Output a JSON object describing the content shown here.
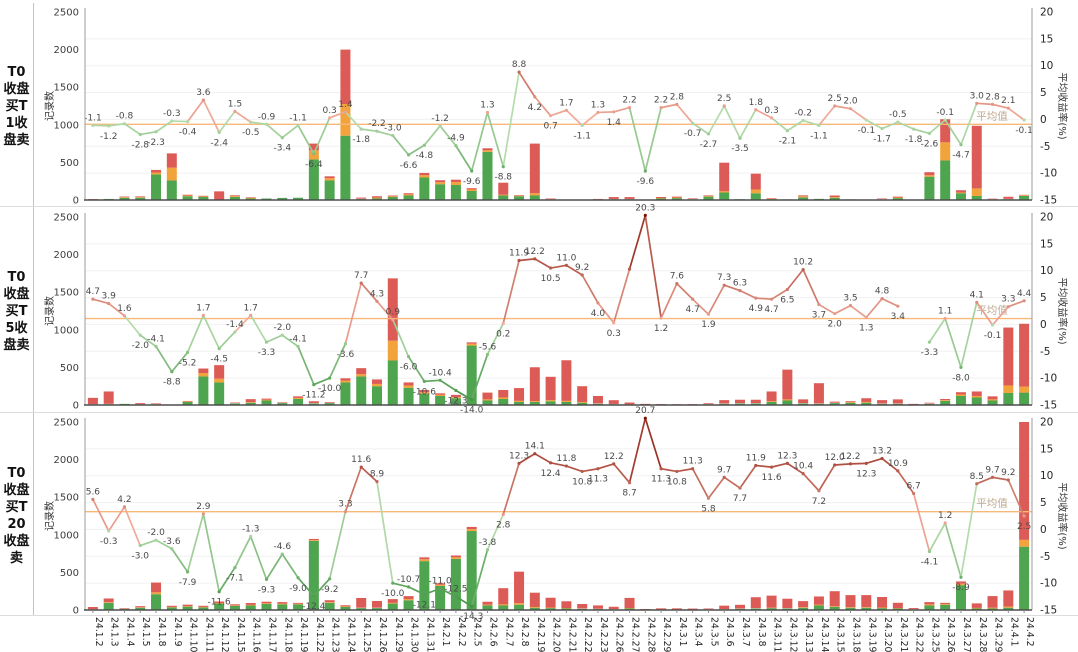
{
  "axes": {
    "left_title": "记录数",
    "right_title": "平均收益率(%)",
    "left_ticks": [
      "0",
      "500",
      "1000",
      "1500",
      "2000",
      "2500"
    ],
    "right_ticks": [
      "-15",
      "-10",
      "-5",
      "0",
      "5",
      "10",
      "15",
      "20"
    ],
    "avg_line_label": "平均值"
  },
  "colors": {
    "bar_green": "#4fa44f",
    "bar_orange": "#f2a33c",
    "bar_red": "#dd5b56",
    "avg_line": "#f7b878",
    "grid": "#f0f0f0",
    "point_label": "#4a4a4a",
    "axis_text": "#333333",
    "avg_text": "#bfa88e",
    "line_neg_weak": "#b5dcab",
    "line_neg_strong": "#3c8f3f",
    "line_pos_weak": "#f4ad9b",
    "line_pos_strong": "#841408"
  },
  "chart_data": {
    "type": "bar+line",
    "panel_count": 3,
    "ylim_left": [
      0,
      2500
    ],
    "ylim_right": [
      -15,
      20
    ],
    "grid": "faint horizontal",
    "legend_position": "none",
    "categories": [
      "24.1.2",
      "24.1.3",
      "24.1.4",
      "24.1.5",
      "24.1.8",
      "24.1.9",
      "24.1.10",
      "24.1.11",
      "24.1.12",
      "24.1.15",
      "24.1.16",
      "24.1.17",
      "24.1.18",
      "24.1.19",
      "24.1.22",
      "24.1.23",
      "24.1.24",
      "24.1.25",
      "24.1.26",
      "24.1.29",
      "24.1.30",
      "24.1.31",
      "24.2.1",
      "24.2.2",
      "24.2.5",
      "24.2.6",
      "24.2.7",
      "24.2.8",
      "24.2.19",
      "24.2.20",
      "24.2.21",
      "24.2.22",
      "24.2.23",
      "24.2.26",
      "24.2.27",
      "24.2.28",
      "24.2.29",
      "24.3.1",
      "24.3.4",
      "24.3.5",
      "24.3.6",
      "24.3.7",
      "24.3.8",
      "24.3.11",
      "24.3.12",
      "24.3.13",
      "24.3.14",
      "24.3.15",
      "24.3.18",
      "24.3.19",
      "24.3.20",
      "24.3.21",
      "24.3.22",
      "24.3.25",
      "24.3.26",
      "24.3.27",
      "24.3.28",
      "24.3.29",
      "24.4.1",
      "24.4.2"
    ],
    "panels": [
      {
        "row_label": "T0收盘买T1收盘卖",
        "avg": -0.9,
        "line": [
          -1.1,
          -1.2,
          -0.8,
          -2.8,
          -2.3,
          -0.3,
          -0.4,
          3.6,
          -2.4,
          1.5,
          -0.5,
          -0.9,
          -3.4,
          -1.1,
          -6.4,
          0.3,
          1.4,
          -1.8,
          -2.2,
          -3.0,
          -6.6,
          -4.8,
          -1.2,
          -4.9,
          -9.6,
          1.3,
          -8.8,
          8.8,
          4.2,
          0.7,
          1.7,
          -1.1,
          1.3,
          1.4,
          2.2,
          -9.6,
          2.2,
          2.8,
          -0.7,
          -2.7,
          2.5,
          -3.5,
          1.8,
          0.3,
          -2.1,
          -0.2,
          -1.1,
          2.5,
          2.0,
          -0.1,
          -1.7,
          -0.5,
          -1.8,
          -2.6,
          -0.1,
          -4.7,
          3.0,
          2.8,
          2.1,
          -0.1
        ],
        "hidden_line_labels": [],
        "bars": {
          "green": [
            4,
            14,
            30,
            30,
            340,
            260,
            50,
            40,
            5,
            40,
            20,
            20,
            28,
            30,
            540,
            260,
            855,
            12,
            20,
            40,
            60,
            300,
            210,
            200,
            120,
            640,
            60,
            50,
            60,
            8,
            5,
            4,
            6,
            10,
            10,
            3,
            20,
            25,
            10,
            45,
            100,
            10,
            90,
            12,
            8,
            35,
            15,
            30,
            8,
            6,
            8,
            25,
            6,
            310,
            526,
            90,
            53,
            8,
            10,
            55
          ],
          "orange": [
            0,
            2,
            8,
            8,
            25,
            170,
            10,
            8,
            0,
            12,
            8,
            4,
            4,
            5,
            120,
            30,
            420,
            5,
            10,
            10,
            15,
            30,
            26,
            40,
            20,
            20,
            10,
            8,
            30,
            2,
            2,
            2,
            2,
            4,
            4,
            1,
            6,
            8,
            4,
            8,
            16,
            2,
            50,
            6,
            3,
            15,
            5,
            10,
            3,
            2,
            4,
            8,
            2,
            20,
            241,
            10,
            101,
            2,
            5,
            8
          ],
          "red": [
            8,
            2,
            8,
            10,
            35,
            190,
            10,
            8,
            110,
            10,
            8,
            4,
            4,
            5,
            90,
            25,
            725,
            15,
            20,
            10,
            15,
            30,
            27,
            30,
            17,
            28,
            160,
            7,
            660,
            10,
            5,
            4,
            6,
            25,
            25,
            3,
            14,
            12,
            8,
            8,
            380,
            3,
            210,
            7,
            5,
            12,
            5,
            20,
            5,
            4,
            8,
            12,
            4,
            40,
            307,
            30,
            833,
            8,
            28,
            6
          ]
        }
      },
      {
        "row_label": "T0收盘买T5收盘卖",
        "avg": 1.1,
        "line": [
          4.7,
          3.9,
          1.6,
          -2.0,
          -4.1,
          -8.8,
          -5.2,
          1.7,
          -4.5,
          -1.4,
          1.7,
          -3.3,
          -2.0,
          -4.1,
          -11.2,
          -10.0,
          -3.6,
          7.7,
          4.3,
          0.9,
          -6.0,
          -10.6,
          -10.4,
          -12.3,
          -14.0,
          -5.6,
          0.2,
          11.9,
          12.2,
          10.5,
          11.0,
          9.2,
          4.0,
          0.3,
          10.3,
          20.3,
          1.2,
          7.6,
          4.7,
          1.9,
          7.3,
          6.3,
          4.9,
          4.7,
          6.5,
          10.2,
          3.7,
          2.0,
          3.5,
          1.3,
          4.8,
          3.4,
          null,
          -3.3,
          1.1,
          -8.0,
          4.1,
          -0.1,
          3.3,
          4.4
        ],
        "hidden_line_labels": [
          34
        ],
        "bars": {
          "green": [
            8,
            10,
            15,
            8,
            10,
            6,
            40,
            380,
            300,
            20,
            30,
            60,
            25,
            80,
            20,
            25,
            300,
            380,
            250,
            592,
            230,
            150,
            120,
            90,
            790,
            60,
            80,
            40,
            40,
            50,
            40,
            30,
            15,
            10,
            6,
            4,
            3,
            3,
            4,
            10,
            15,
            20,
            20,
            40,
            60,
            20,
            15,
            25,
            30,
            30,
            15,
            15,
            5,
            15,
            55,
            120,
            100,
            60,
            160,
            165
          ],
          "orange": [
            2,
            5,
            3,
            2,
            3,
            2,
            8,
            45,
            50,
            5,
            8,
            10,
            5,
            15,
            5,
            5,
            25,
            30,
            30,
            263,
            30,
            20,
            15,
            15,
            25,
            15,
            20,
            15,
            12,
            15,
            15,
            10,
            5,
            4,
            2,
            1,
            1,
            1,
            1,
            3,
            5,
            5,
            5,
            10,
            15,
            5,
            5,
            5,
            10,
            10,
            5,
            5,
            2,
            5,
            10,
            20,
            20,
            15,
            100,
            80
          ],
          "red": [
            85,
            165,
            5,
            15,
            8,
            4,
            6,
            60,
            180,
            8,
            40,
            15,
            8,
            20,
            25,
            10,
            30,
            80,
            60,
            829,
            40,
            30,
            20,
            30,
            18,
            90,
            100,
            170,
            450,
            310,
            540,
            210,
            100,
            50,
            25,
            10,
            8,
            6,
            6,
            10,
            45,
            45,
            45,
            130,
            395,
            50,
            270,
            15,
            10,
            50,
            45,
            55,
            8,
            10,
            15,
            30,
            60,
            40,
            770,
            835
          ]
        }
      },
      {
        "row_label": "T0收盘买T20收盘卖",
        "avg": 3.3,
        "line": [
          5.6,
          -0.3,
          4.2,
          -3.0,
          -2.0,
          -3.6,
          -7.9,
          2.9,
          -11.6,
          -7.1,
          -1.3,
          -9.3,
          -4.6,
          -9.0,
          -12.4,
          -9.2,
          3.3,
          11.6,
          8.9,
          -10.0,
          -10.7,
          -12.1,
          -11.0,
          -12.5,
          -14.3,
          -3.8,
          2.8,
          12.3,
          14.1,
          12.4,
          11.8,
          10.8,
          11.3,
          12.2,
          8.7,
          20.7,
          11.3,
          10.8,
          11.3,
          5.8,
          9.7,
          7.7,
          11.9,
          11.6,
          12.3,
          10.4,
          7.2,
          12.0,
          12.2,
          12.3,
          13.2,
          10.9,
          6.7,
          -4.1,
          1.2,
          -8.9,
          8.5,
          9.7,
          9.2,
          2.5
        ],
        "hidden_line_labels": [],
        "bars": {
          "green": [
            8,
            95,
            15,
            30,
            210,
            35,
            45,
            35,
            85,
            55,
            60,
            80,
            75,
            75,
            920,
            95,
            40,
            25,
            25,
            85,
            130,
            650,
            320,
            680,
            1050,
            60,
            60,
            70,
            30,
            25,
            20,
            15,
            12,
            10,
            20,
            4,
            5,
            5,
            5,
            8,
            10,
            15,
            20,
            25,
            20,
            30,
            60,
            40,
            30,
            30,
            25,
            20,
            8,
            60,
            70,
            330,
            20,
            20,
            30,
            842
          ],
          "orange": [
            2,
            8,
            3,
            6,
            25,
            6,
            8,
            6,
            8,
            6,
            8,
            10,
            10,
            8,
            10,
            10,
            8,
            5,
            5,
            10,
            15,
            25,
            15,
            20,
            25,
            10,
            15,
            20,
            10,
            8,
            6,
            5,
            4,
            3,
            6,
            1,
            2,
            2,
            2,
            2,
            3,
            4,
            5,
            6,
            5,
            8,
            10,
            10,
            8,
            8,
            8,
            6,
            3,
            15,
            10,
            20,
            8,
            10,
            15,
            91
          ],
          "red": [
            30,
            50,
            8,
            15,
            130,
            15,
            18,
            15,
            20,
            15,
            25,
            20,
            20,
            12,
            15,
            25,
            15,
            130,
            90,
            50,
            40,
            25,
            20,
            25,
            30,
            40,
            215,
            420,
            190,
            130,
            90,
            60,
            45,
            30,
            135,
            8,
            15,
            15,
            12,
            10,
            45,
            50,
            145,
            160,
            125,
            80,
            110,
            200,
            160,
            160,
            140,
            70,
            15,
            30,
            15,
            30,
            60,
            155,
            215,
            1594
          ]
        }
      }
    ]
  }
}
